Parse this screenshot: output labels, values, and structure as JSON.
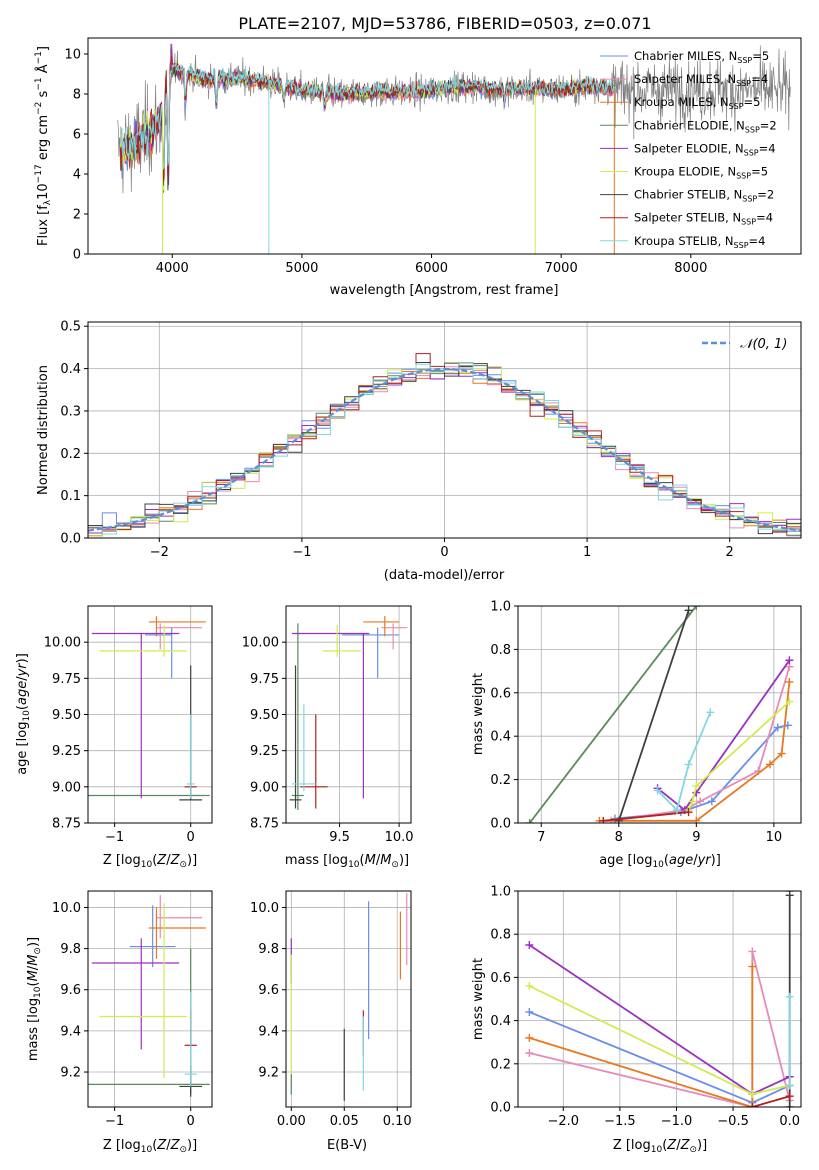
{
  "figure_title": "PLATE=2107, MJD=53786, FIBERID=0503, z=0.071",
  "series_colors": [
    "#6a8ee8",
    "#e88ab8",
    "#e87820",
    "#5a8a5a",
    "#9b30c0",
    "#d0ec50",
    "#404040",
    "#b02020",
    "#80d8e0"
  ],
  "chart_data": [
    {
      "type": "line",
      "title": "PLATE=2107, MJD=53786, FIBERID=0503, z=0.071",
      "xlabel": "wavelength [Angstrom, rest frame]",
      "ylabel": "Flux [fλ 10⁻¹⁷ erg cm⁻² s⁻¹ Å⁻¹]",
      "xlim": [
        3350,
        8850
      ],
      "ylim": [
        0,
        10.8
      ],
      "xticks": [
        "4000",
        "5000",
        "6000",
        "7000",
        "8000"
      ],
      "yticks": [
        "0",
        "2",
        "4",
        "6",
        "8",
        "10"
      ],
      "legend": [
        "Chabrier MILES, N_SSP=5",
        "Salpeter MILES, N_SSP=4",
        "Kroupa MILES, N_SSP=5",
        "Chabrier ELODIE, N_SSP=2",
        "Salpeter ELODIE, N_SSP=4",
        "Kroupa ELODIE, N_SSP=5",
        "Chabrier STELIB, N_SSP=2",
        "Salpeter STELIB, N_SSP=4",
        "Kroupa STELIB, N_SSP=4"
      ],
      "legend_placement": "right",
      "continuum": {
        "x": [
          3600,
          3700,
          3800,
          3900,
          4000,
          4100,
          4300,
          4500,
          4700,
          5000,
          5300,
          5600,
          5900,
          6100,
          6300,
          6500,
          6700,
          6900,
          7100,
          7300,
          7400
        ],
        "y": [
          5.2,
          5.4,
          6.0,
          6.6,
          9.3,
          9.0,
          8.7,
          8.8,
          8.6,
          8.2,
          8.0,
          8.1,
          8.1,
          8.3,
          8.4,
          8.2,
          8.3,
          8.2,
          8.3,
          8.4,
          8.2
        ]
      },
      "data_spectrum_range": [
        3580,
        8770
      ],
      "absorption_dips": [
        {
          "x": 3934,
          "y": 3.0
        },
        {
          "x": 3969,
          "y": 3.3
        },
        {
          "x": 4102,
          "y": 7.4
        },
        {
          "x": 4340,
          "y": 7.3
        },
        {
          "x": 4861,
          "y": 7.6
        },
        {
          "x": 5175,
          "y": 7.3
        },
        {
          "x": 6563,
          "y": 7.6
        }
      ],
      "grid": false
    },
    {
      "type": "histogram",
      "xlabel": "(data-model)/error",
      "ylabel": "Normed distribution",
      "xlim": [
        -2.5,
        2.5
      ],
      "ylim": [
        0,
        0.51
      ],
      "xticks": [
        "−2",
        "−1",
        "0",
        "1",
        "2"
      ],
      "yticks": [
        "0.0",
        "0.1",
        "0.2",
        "0.3",
        "0.4",
        "0.5"
      ],
      "reference_curve": "N(0,1)",
      "bin_width": 0.1,
      "legend_placement": "top-right",
      "grid": true
    },
    {
      "type": "scatter",
      "xlabel": "Z [log10(Z/Z⊙)]",
      "ylabel": "age [log10(age/yr)]",
      "xlim": [
        -1.35,
        0.28
      ],
      "ylim": [
        8.75,
        10.25
      ],
      "xticks": [
        "−1",
        "0"
      ],
      "yticks": [
        "8.75",
        "9.00",
        "9.25",
        "9.50",
        "9.75",
        "10.00"
      ],
      "series": [
        {
          "x": -0.25,
          "xerr": [
            0.35,
            0
          ],
          "y": 10.05,
          "yerr": [
            0.3,
            0.05
          ]
        },
        {
          "x": -0.4,
          "xerr": [
            0.05,
            0.55
          ],
          "y": 10.1,
          "yerr": [
            0.15,
            0.03
          ]
        },
        {
          "x": -0.45,
          "xerr": [
            0.1,
            0.65
          ],
          "y": 10.14,
          "yerr": [
            0.1,
            0.04
          ]
        },
        {
          "x": 0.0,
          "xerr": [
            1.35,
            0.25
          ],
          "y": 8.94,
          "yerr": [
            0,
            0
          ]
        },
        {
          "x": -0.65,
          "xerr": [
            0.65,
            0.5
          ],
          "y": 10.06,
          "yerr": [
            1.14,
            0
          ]
        },
        {
          "x": -0.35,
          "xerr": [
            0.85,
            0.3
          ],
          "y": 9.94,
          "yerr": [
            0.04,
            0.18
          ]
        },
        {
          "x": 0.0,
          "xerr": [
            0.15,
            0.15
          ],
          "y": 8.91,
          "yerr": [
            0,
            0.93
          ]
        },
        {
          "x": 0.0,
          "xerr": [
            0.08,
            0.08
          ],
          "y": 9.0,
          "yerr": [
            0,
            0
          ]
        },
        {
          "x": 0.0,
          "xerr": [
            0.05,
            0.05
          ],
          "y": 9.02,
          "yerr": [
            0.1,
            0.48
          ]
        }
      ],
      "grid": true
    },
    {
      "type": "scatter",
      "xlabel": "mass [log10(M/M⊙)]",
      "ylabel": "",
      "xlim": [
        9.05,
        10.1
      ],
      "ylim": [
        8.75,
        10.25
      ],
      "xticks": [
        "9.5",
        "10.0"
      ],
      "yticks": [
        "8.75",
        "9.00",
        "9.25",
        "9.50",
        "9.75",
        "10.00"
      ],
      "series": [
        {
          "x": 9.82,
          "xerr": [
            0.3,
            0.18
          ],
          "y": 10.05,
          "yerr": [
            0.3,
            0.05
          ]
        },
        {
          "x": 9.95,
          "xerr": [
            0.1,
            0.12
          ],
          "y": 10.1,
          "yerr": [
            0.15,
            0.03
          ]
        },
        {
          "x": 9.88,
          "xerr": [
            0.18,
            0.12
          ],
          "y": 10.14,
          "yerr": [
            0.1,
            0.04
          ]
        },
        {
          "x": 9.15,
          "xerr": [
            0.05,
            0.05
          ],
          "y": 8.94,
          "yerr": [
            0.1,
            1.19
          ]
        },
        {
          "x": 9.7,
          "xerr": [
            0.6,
            0.05
          ],
          "y": 10.06,
          "yerr": [
            1.14,
            0
          ]
        },
        {
          "x": 9.48,
          "xerr": [
            0.12,
            0.2
          ],
          "y": 9.94,
          "yerr": [
            0.04,
            0.18
          ]
        },
        {
          "x": 9.13,
          "xerr": [
            0.05,
            0.05
          ],
          "y": 8.91,
          "yerr": [
            0.06,
            0.93
          ]
        },
        {
          "x": 9.3,
          "xerr": [
            0.13,
            0.1
          ],
          "y": 9.0,
          "yerr": [
            0.15,
            0.5
          ]
        },
        {
          "x": 9.2,
          "xerr": [
            0.1,
            0.1
          ],
          "y": 9.02,
          "yerr": [
            0.05,
            0.55
          ]
        }
      ],
      "grid": true
    },
    {
      "type": "line",
      "xlabel": "age [log10(age/yr)]",
      "ylabel": "mass weight",
      "xlim": [
        6.7,
        10.35
      ],
      "ylim": [
        0,
        1.0
      ],
      "xticks": [
        "7",
        "8",
        "9",
        "10"
      ],
      "yticks": [
        "0.0",
        "0.2",
        "0.4",
        "0.6",
        "0.8",
        "1.0"
      ],
      "series": [
        {
          "x": [
            7.95,
            8.8,
            9.2,
            10.05,
            10.18
          ],
          "y": [
            0.02,
            0.05,
            0.1,
            0.44,
            0.45
          ]
        },
        {
          "x": [
            7.9,
            8.85,
            9.05,
            9.8,
            10.2
          ],
          "y": [
            0.01,
            0.06,
            0.1,
            0.24,
            0.72
          ]
        },
        {
          "x": [
            7.75,
            9.0,
            9.95,
            10.1,
            10.2
          ],
          "y": [
            0.01,
            0.01,
            0.27,
            0.32,
            0.65
          ]
        },
        {
          "x": [
            6.85,
            9.0
          ],
          "y": [
            0.0,
            1.0
          ]
        },
        {
          "x": [
            8.5,
            8.85,
            9.0,
            10.2
          ],
          "y": [
            0.16,
            0.06,
            0.14,
            0.75
          ]
        },
        {
          "x": [
            8.9,
            8.95,
            9.0,
            10.2
          ],
          "y": [
            0.06,
            0.1,
            0.17,
            0.56
          ]
        },
        {
          "x": [
            8.0,
            8.9
          ],
          "y": [
            0.01,
            0.98
          ]
        },
        {
          "x": [
            7.8,
            8.9
          ],
          "y": [
            0.01,
            0.05
          ]
        },
        {
          "x": [
            8.5,
            8.75,
            8.9,
            9.18
          ],
          "y": [
            0.15,
            0.06,
            0.27,
            0.51
          ]
        }
      ],
      "grid": true
    },
    {
      "type": "scatter",
      "xlabel": "Z [log10(Z/Z⊙)]",
      "ylabel": "mass [log10(M/M⊙)]",
      "xlim": [
        -1.35,
        0.28
      ],
      "ylim": [
        9.03,
        10.08
      ],
      "xticks": [
        "−1",
        "0"
      ],
      "yticks": [
        "9.2",
        "9.4",
        "9.6",
        "9.8",
        "10.0"
      ],
      "series": [
        {
          "x": -0.5,
          "xerr": [
            0.3,
            0.3
          ],
          "y": 9.81,
          "yerr": [
            0.1,
            0.2
          ]
        },
        {
          "x": -0.4,
          "xerr": [
            0.05,
            0.55
          ],
          "y": 9.95,
          "yerr": [
            0.1,
            0.11
          ]
        },
        {
          "x": -0.45,
          "xerr": [
            0.1,
            0.65
          ],
          "y": 9.9,
          "yerr": [
            0.15,
            0.1
          ]
        },
        {
          "x": 0.0,
          "xerr": [
            1.35,
            0.25
          ],
          "y": 9.14,
          "yerr": [
            0.05,
            0.66
          ]
        },
        {
          "x": -0.65,
          "xerr": [
            0.65,
            0.5
          ],
          "y": 9.73,
          "yerr": [
            0.42,
            0.12
          ]
        },
        {
          "x": -0.35,
          "xerr": [
            0.85,
            0.3
          ],
          "y": 9.47,
          "yerr": [
            0.3,
            0.55
          ]
        },
        {
          "x": 0.0,
          "xerr": [
            0.15,
            0.15
          ],
          "y": 9.13,
          "yerr": [
            0.05,
            0.1
          ]
        },
        {
          "x": 0.0,
          "xerr": [
            0.08,
            0.08
          ],
          "y": 9.33,
          "yerr": [
            0,
            0.17
          ]
        },
        {
          "x": 0.0,
          "xerr": [
            0.08,
            0.08
          ],
          "y": 9.19,
          "yerr": [
            0.06,
            0.4
          ]
        }
      ],
      "grid": true
    },
    {
      "type": "scatter",
      "xlabel": "E(B-V)",
      "ylabel": "",
      "xlim": [
        -0.005,
        0.113
      ],
      "ylim": [
        9.03,
        10.08
      ],
      "xticks": [
        "0.00",
        "0.05",
        "0.10"
      ],
      "yticks": [
        "9.2",
        "9.4",
        "9.6",
        "9.8",
        "10.0"
      ],
      "series": [
        {
          "x": 0.073,
          "xerr": [
            0,
            0
          ],
          "y": 9.81,
          "yerr": [
            0.45,
            0.22
          ]
        },
        {
          "x": 0.109,
          "xerr": [
            0,
            0
          ],
          "y": 9.95,
          "yerr": [
            0.23,
            0.12
          ]
        },
        {
          "x": 0.103,
          "xerr": [
            0,
            0
          ],
          "y": 9.9,
          "yerr": [
            0.25,
            0.08
          ]
        },
        {
          "x": 0.0,
          "xerr": [
            0,
            0
          ],
          "y": 9.14,
          "yerr": [
            0.05,
            0.05
          ]
        },
        {
          "x": 0.0,
          "xerr": [
            0,
            0
          ],
          "y": 9.73,
          "yerr": [
            0.1,
            0.12
          ]
        },
        {
          "x": 0.0,
          "xerr": [
            0,
            0
          ],
          "y": 9.47,
          "yerr": [
            0.28,
            0.3
          ]
        },
        {
          "x": 0.05,
          "xerr": [
            0,
            0
          ],
          "y": 9.13,
          "yerr": [
            0.07,
            0.28
          ]
        },
        {
          "x": 0.068,
          "xerr": [
            0,
            0
          ],
          "y": 9.33,
          "yerr": [
            0.05,
            0.17
          ]
        },
        {
          "x": 0.068,
          "xerr": [
            0,
            0
          ],
          "y": 9.19,
          "yerr": [
            0.08,
            0.28
          ]
        }
      ],
      "grid": true
    },
    {
      "type": "line",
      "xlabel": "Z [log10(Z/Z⊙)]",
      "ylabel": "mass weight",
      "xlim": [
        -2.4,
        0.1
      ],
      "ylim": [
        0,
        1.0
      ],
      "xticks": [
        "−2.0",
        "−1.5",
        "−1.0",
        "−0.5",
        "0.0"
      ],
      "yticks": [
        "0.0",
        "0.2",
        "0.4",
        "0.6",
        "0.8",
        "1.0"
      ],
      "series": [
        {
          "x": [
            -2.3,
            -0.33,
            0.0
          ],
          "y": [
            0.44,
            0.02,
            0.1
          ]
        },
        {
          "x": [
            -2.3,
            -0.33,
            -0.33,
            0.0
          ],
          "y": [
            0.25,
            0.0,
            0.72,
            0.03
          ]
        },
        {
          "x": [
            -2.3,
            -0.33,
            -0.33
          ],
          "y": [
            0.32,
            0.0,
            0.65
          ]
        },
        {
          "x": [
            0.0
          ],
          "y": [
            1.0
          ]
        },
        {
          "x": [
            -2.3,
            -0.33,
            0.0
          ],
          "y": [
            0.75,
            0.06,
            0.14
          ]
        },
        {
          "x": [
            -2.3,
            -0.33,
            0.0
          ],
          "y": [
            0.56,
            0.06,
            0.1
          ]
        },
        {
          "x": [
            0.0,
            0.0
          ],
          "y": [
            0.0,
            0.98
          ]
        },
        {
          "x": [
            -0.33,
            0.0
          ],
          "y": [
            0.0,
            0.05
          ]
        },
        {
          "x": [
            0.0,
            0.0
          ],
          "y": [
            0.1,
            0.51
          ]
        }
      ],
      "grid": true
    }
  ]
}
